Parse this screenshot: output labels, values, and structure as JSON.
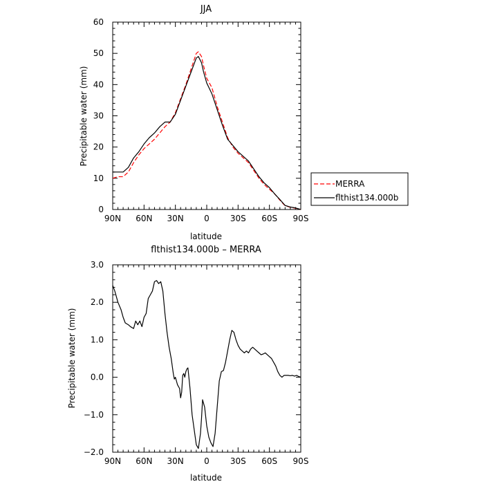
{
  "chart_data": [
    {
      "type": "line",
      "title": "JJA",
      "xlabel": "latitude",
      "ylabel": "Precipitable water (mm)",
      "xlim": [
        -90,
        90
      ],
      "ylim": [
        0,
        60
      ],
      "x_ticks": [
        -90,
        -60,
        -30,
        0,
        30,
        60,
        90
      ],
      "x_tick_labels": [
        "90N",
        "60N",
        "30N",
        "0",
        "30S",
        "60S",
        "90S"
      ],
      "y_ticks": [
        0,
        10,
        20,
        30,
        40,
        50,
        60
      ],
      "y_tick_labels": [
        "0",
        "10",
        "20",
        "30",
        "40",
        "50",
        "60"
      ],
      "legend_position": "right",
      "series": [
        {
          "name": "MERRA",
          "color": "#ff0000",
          "dash": "dashed",
          "x": [
            -90,
            -85,
            -80,
            -75,
            -70,
            -65,
            -60,
            -55,
            -50,
            -45,
            -40,
            -35,
            -30,
            -25,
            -20,
            -15,
            -10,
            -8,
            -5,
            -3,
            0,
            5,
            10,
            15,
            20,
            25,
            30,
            35,
            40,
            45,
            50,
            55,
            60,
            65,
            70,
            75,
            80,
            85,
            90
          ],
          "y": [
            10,
            10.5,
            10.5,
            12,
            15,
            17.5,
            19.5,
            21,
            22.5,
            24.5,
            26.5,
            28,
            31,
            35.5,
            40,
            45,
            50,
            50.5,
            49,
            46,
            42,
            39,
            33,
            28,
            23,
            20,
            18,
            16.5,
            15,
            12.5,
            10,
            8,
            6.5,
            5,
            3,
            1.2,
            0.7,
            0.4,
            0
          ]
        },
        {
          "name": "flthist134.000b",
          "color": "#000000",
          "dash": "solid",
          "x": [
            -90,
            -85,
            -80,
            -75,
            -70,
            -65,
            -60,
            -55,
            -50,
            -45,
            -40,
            -35,
            -30,
            -25,
            -20,
            -15,
            -10,
            -8,
            -5,
            -3,
            0,
            5,
            10,
            15,
            20,
            25,
            30,
            35,
            40,
            45,
            50,
            55,
            60,
            65,
            70,
            75,
            80,
            85,
            90
          ],
          "y": [
            12,
            12,
            12,
            13.5,
            16.5,
            18.5,
            21,
            23,
            24.5,
            26.5,
            28,
            28,
            30.5,
            35,
            39.5,
            44,
            48.5,
            49,
            47,
            44,
            40.5,
            37,
            32,
            27,
            22.5,
            20.5,
            18.5,
            17,
            15.5,
            13,
            10.5,
            8.5,
            7,
            5,
            3.2,
            1.3,
            0.8,
            0.5,
            0
          ]
        }
      ]
    },
    {
      "type": "line",
      "title": "flthist134.000b – MERRA",
      "xlabel": "latitude",
      "ylabel": "Precipitable water (mm)",
      "xlim": [
        -90,
        90
      ],
      "ylim": [
        -2,
        3
      ],
      "x_ticks": [
        -90,
        -60,
        -30,
        0,
        30,
        60,
        90
      ],
      "x_tick_labels": [
        "90N",
        "60N",
        "30N",
        "0",
        "30S",
        "60S",
        "90S"
      ],
      "y_ticks": [
        -2,
        -1,
        0,
        1,
        2,
        3
      ],
      "y_tick_labels": [
        "−2.0",
        "−1.0",
        "0.0",
        "1.0",
        "2.0",
        "3.0"
      ],
      "series": [
        {
          "color": "#000000",
          "dash": "solid",
          "x": [
            -90,
            -88,
            -85,
            -82,
            -80,
            -78,
            -75,
            -73,
            -70,
            -68,
            -66,
            -64,
            -62,
            -60,
            -58,
            -56,
            -54,
            -52,
            -50,
            -48,
            -46,
            -44,
            -42,
            -40,
            -38,
            -36,
            -34,
            -32,
            -31,
            -30,
            -28,
            -26,
            -25,
            -24,
            -23,
            -22,
            -21,
            -20,
            -19,
            -18,
            -16,
            -14,
            -12,
            -10,
            -8,
            -6,
            -5,
            -4,
            -2,
            0,
            2,
            4,
            6,
            8,
            10,
            12,
            14,
            16,
            18,
            20,
            22,
            24,
            26,
            28,
            30,
            32,
            34,
            36,
            38,
            40,
            42,
            44,
            46,
            48,
            50,
            52,
            54,
            56,
            58,
            60,
            62,
            64,
            66,
            68,
            70,
            72,
            74,
            76,
            78,
            80,
            82,
            84,
            86,
            88,
            90
          ],
          "y": [
            2.45,
            2.3,
            2.0,
            1.8,
            1.6,
            1.45,
            1.4,
            1.35,
            1.3,
            1.5,
            1.4,
            1.5,
            1.35,
            1.6,
            1.7,
            2.1,
            2.2,
            2.3,
            2.55,
            2.58,
            2.5,
            2.55,
            2.3,
            1.7,
            1.2,
            0.8,
            0.5,
            0.1,
            -0.05,
            0.0,
            -0.2,
            -0.3,
            -0.55,
            -0.4,
            0.05,
            0.1,
            0.0,
            0.15,
            0.22,
            0.25,
            -0.3,
            -1.0,
            -1.4,
            -1.8,
            -1.9,
            -1.5,
            -1.1,
            -0.6,
            -0.8,
            -1.3,
            -1.6,
            -1.75,
            -1.85,
            -1.5,
            -0.8,
            -0.1,
            0.15,
            0.18,
            0.4,
            0.7,
            1.0,
            1.25,
            1.2,
            1.0,
            0.85,
            0.75,
            0.7,
            0.65,
            0.7,
            0.65,
            0.75,
            0.8,
            0.75,
            0.7,
            0.65,
            0.6,
            0.62,
            0.65,
            0.6,
            0.55,
            0.5,
            0.4,
            0.3,
            0.15,
            0.05,
            0.0,
            0.05,
            0.05,
            0.05,
            0.04,
            0.05,
            0.03,
            0.05,
            0.02,
            0.0
          ]
        }
      ]
    }
  ]
}
